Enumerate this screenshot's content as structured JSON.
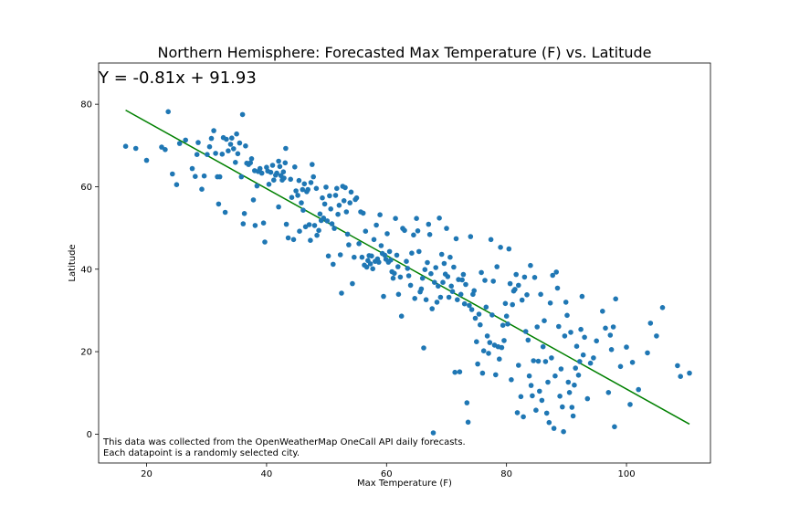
{
  "chart_data": {
    "type": "scatter",
    "title": "Northern Hemisphere: Forecasted Max Temperature (F) vs. Latitude",
    "xlabel": "Max Temperature (F)",
    "ylabel": "Latitude",
    "xlim": [
      12,
      114
    ],
    "ylim": [
      -7,
      90
    ],
    "xticks": [
      20,
      40,
      60,
      80,
      100
    ],
    "yticks": [
      0,
      20,
      40,
      60,
      80
    ],
    "grid": false,
    "equation": "Y = -0.81x + 91.93",
    "regression": {
      "slope": -0.81,
      "intercept": 91.93,
      "x_start": 16.5,
      "x_end": 110.5,
      "color": "#008000"
    },
    "point_color": "#1f77b4",
    "annotation_lines": [
      "This data was collected from the OpenWeatherMap OneCall API daily forecasts.",
      "Each datapoint is a randomly selected city."
    ],
    "points": [
      [
        16.5,
        69.8
      ],
      [
        18.2,
        69.3
      ],
      [
        20,
        66.4
      ],
      [
        22.5,
        69.6
      ],
      [
        23.1,
        69
      ],
      [
        23.6,
        78.2
      ],
      [
        24.3,
        63.1
      ],
      [
        25,
        60.5
      ],
      [
        25.5,
        70.5
      ],
      [
        26.5,
        71.3
      ],
      [
        27.6,
        64.4
      ],
      [
        28.1,
        62.5
      ],
      [
        28.4,
        67.8
      ],
      [
        28.6,
        70.7
      ],
      [
        29.2,
        59.4
      ],
      [
        29.6,
        62.6
      ],
      [
        30.1,
        67.8
      ],
      [
        30.5,
        69.7
      ],
      [
        30.8,
        71.7
      ],
      [
        31.2,
        73.6
      ],
      [
        31.5,
        68.1
      ],
      [
        31.8,
        62.4
      ],
      [
        32,
        55.8
      ],
      [
        32.2,
        62.4
      ],
      [
        32.6,
        67.9
      ],
      [
        32.8,
        71.9
      ],
      [
        33.1,
        53.8
      ],
      [
        33.3,
        71.5
      ],
      [
        33.6,
        68.7
      ],
      [
        34,
        70.3
      ],
      [
        34.2,
        71.8
      ],
      [
        34.5,
        69.2
      ],
      [
        34.8,
        65.9
      ],
      [
        35,
        72.8
      ],
      [
        35.2,
        68
      ],
      [
        35.5,
        70.6
      ],
      [
        35.8,
        62.4
      ],
      [
        36,
        77.5
      ],
      [
        36.1,
        51
      ],
      [
        36.3,
        53.5
      ],
      [
        36.5,
        69.9
      ],
      [
        36.7,
        65.7
      ],
      [
        37,
        65.4
      ],
      [
        37.3,
        65.8
      ],
      [
        37.5,
        66.8
      ],
      [
        37.8,
        56.8
      ],
      [
        38,
        63.9
      ],
      [
        38.1,
        50.6
      ],
      [
        38.4,
        60.2
      ],
      [
        38.6,
        63.7
      ],
      [
        38.9,
        64.4
      ],
      [
        39.2,
        63.3
      ],
      [
        39.5,
        51.2
      ],
      [
        39.7,
        46.6
      ],
      [
        40,
        64.7
      ],
      [
        40.2,
        63.8
      ],
      [
        40.4,
        60.6
      ],
      [
        40.7,
        63.5
      ],
      [
        41,
        65.2
      ],
      [
        41.2,
        61.6
      ],
      [
        41.5,
        62.8
      ],
      [
        41.7,
        63.3
      ],
      [
        42,
        55.1
      ],
      [
        42,
        66.2
      ],
      [
        42.2,
        64.9
      ],
      [
        42.4,
        62.7
      ],
      [
        42.6,
        61.6
      ],
      [
        42.8,
        63.6
      ],
      [
        42.9,
        62.1
      ],
      [
        43.1,
        65.8
      ],
      [
        43.2,
        69.3
      ],
      [
        43.3,
        50.9
      ],
      [
        43.6,
        47.6
      ],
      [
        44,
        61.8
      ],
      [
        44.2,
        57.4
      ],
      [
        44.5,
        47.2
      ],
      [
        44.7,
        64.8
      ],
      [
        44.9,
        59
      ],
      [
        45.2,
        57.9
      ],
      [
        45.4,
        61.5
      ],
      [
        45.5,
        49.2
      ],
      [
        45.8,
        56.1
      ],
      [
        46,
        59.3
      ],
      [
        46.1,
        54.3
      ],
      [
        46.3,
        60.7
      ],
      [
        46.5,
        50.3
      ],
      [
        46.7,
        58.8
      ],
      [
        46.9,
        59.3
      ],
      [
        47.1,
        50.8
      ],
      [
        47.3,
        47
      ],
      [
        47.4,
        61
      ],
      [
        47.6,
        65.4
      ],
      [
        47.8,
        62.4
      ],
      [
        48,
        50.6
      ],
      [
        48.3,
        59.6
      ],
      [
        48.4,
        48.2
      ],
      [
        48.7,
        49.4
      ],
      [
        48.9,
        53.4
      ],
      [
        49.1,
        51.8
      ],
      [
        49.3,
        57.3
      ],
      [
        49.5,
        52.4
      ],
      [
        49.7,
        55.8
      ],
      [
        49.9,
        59.9
      ],
      [
        50.1,
        51.7
      ],
      [
        50.3,
        43.2
      ],
      [
        50.5,
        57.8
      ],
      [
        50.7,
        54.6
      ],
      [
        50.9,
        51
      ],
      [
        51.1,
        41.2
      ],
      [
        51.3,
        49.9
      ],
      [
        51.5,
        57.9
      ],
      [
        51.7,
        59.6
      ],
      [
        51.9,
        53.3
      ],
      [
        52.1,
        55.5
      ],
      [
        52.3,
        43.5
      ],
      [
        52.5,
        34.2
      ],
      [
        52.7,
        60.1
      ],
      [
        52.9,
        56.6
      ],
      [
        53.1,
        59.8
      ],
      [
        53.3,
        53.9
      ],
      [
        53.5,
        48.5
      ],
      [
        53.7,
        45.9
      ],
      [
        53.9,
        56.1
      ],
      [
        54.1,
        58.7
      ],
      [
        54.3,
        36.5
      ],
      [
        54.6,
        42.9
      ],
      [
        54.8,
        56.9
      ],
      [
        55,
        57.3
      ],
      [
        55.4,
        46.2
      ],
      [
        55.7,
        53.9
      ],
      [
        55.9,
        42.9
      ],
      [
        56.1,
        53.6
      ],
      [
        56.3,
        41
      ],
      [
        56.5,
        49.2
      ],
      [
        56.7,
        40.5
      ],
      [
        56.9,
        42.1
      ],
      [
        57.1,
        43.3
      ],
      [
        57.3,
        41.3
      ],
      [
        57.5,
        43.2
      ],
      [
        57.7,
        40.1
      ],
      [
        57.9,
        47.2
      ],
      [
        58.1,
        41.9
      ],
      [
        58.3,
        50.7
      ],
      [
        58.5,
        42.5
      ],
      [
        58.7,
        41.7
      ],
      [
        58.9,
        53.2
      ],
      [
        59.1,
        45.7
      ],
      [
        59.3,
        43.8
      ],
      [
        59.5,
        33.4
      ],
      [
        59.7,
        43.4
      ],
      [
        59.9,
        42.4
      ],
      [
        60.1,
        48.6
      ],
      [
        60.3,
        41.7
      ],
      [
        60.5,
        44.3
      ],
      [
        60.7,
        42.2
      ],
      [
        60.9,
        39.4
      ],
      [
        61.1,
        37.8
      ],
      [
        61.3,
        39
      ],
      [
        61.5,
        52.3
      ],
      [
        61.7,
        43.4
      ],
      [
        61.9,
        40.6
      ],
      [
        62,
        33.9
      ],
      [
        62.3,
        38.1
      ],
      [
        62.5,
        28.6
      ],
      [
        62.7,
        49.9
      ],
      [
        63,
        49.4
      ],
      [
        63.3,
        41.9
      ],
      [
        63.5,
        40.2
      ],
      [
        63.7,
        38.4
      ],
      [
        64,
        36.1
      ],
      [
        64.2,
        43.9
      ],
      [
        64.5,
        48.3
      ],
      [
        64.7,
        32.9
      ],
      [
        65,
        52.3
      ],
      [
        65.2,
        49.3
      ],
      [
        65.4,
        44.3
      ],
      [
        65.6,
        34.5
      ],
      [
        65.8,
        35.2
      ],
      [
        66,
        37.8
      ],
      [
        66.2,
        20.9
      ],
      [
        66.4,
        39.9
      ],
      [
        66.6,
        32.6
      ],
      [
        66.8,
        41.6
      ],
      [
        67,
        50.9
      ],
      [
        67.2,
        48.4
      ],
      [
        67.4,
        38.9
      ],
      [
        67.6,
        30.4
      ],
      [
        67.8,
        0.3
      ],
      [
        68,
        36.8
      ],
      [
        68.2,
        40.4
      ],
      [
        68.4,
        32
      ],
      [
        68.6,
        35.9
      ],
      [
        68.8,
        52.4
      ],
      [
        69,
        33.2
      ],
      [
        69.2,
        43.6
      ],
      [
        69.4,
        36.8
      ],
      [
        69.6,
        41.4
      ],
      [
        69.8,
        38.8
      ],
      [
        70,
        49.9
      ],
      [
        70.2,
        38.2
      ],
      [
        70.4,
        33.2
      ],
      [
        70.6,
        42.9
      ],
      [
        70.8,
        35.9
      ],
      [
        71,
        34.6
      ],
      [
        71.2,
        40.5
      ],
      [
        71.4,
        15
      ],
      [
        71.6,
        47.4
      ],
      [
        71.8,
        32.6
      ],
      [
        72,
        37.5
      ],
      [
        72.2,
        15.1
      ],
      [
        72.4,
        33.9
      ],
      [
        72.6,
        37.4
      ],
      [
        72.8,
        38.7
      ],
      [
        73,
        31.6
      ],
      [
        73.2,
        36.3
      ],
      [
        73.4,
        7.6
      ],
      [
        73.6,
        2.9
      ],
      [
        73.8,
        31.2
      ],
      [
        74,
        47.9
      ],
      [
        74.2,
        30.2
      ],
      [
        74.4,
        33.9
      ],
      [
        74.6,
        34.8
      ],
      [
        74.8,
        28.1
      ],
      [
        75,
        22.4
      ],
      [
        75.2,
        17
      ],
      [
        75.4,
        29.1
      ],
      [
        75.6,
        26.5
      ],
      [
        75.8,
        39.2
      ],
      [
        76,
        14.8
      ],
      [
        76.2,
        20.2
      ],
      [
        76.4,
        37.3
      ],
      [
        76.6,
        30.8
      ],
      [
        76.8,
        23.8
      ],
      [
        77,
        19.6
      ],
      [
        77.2,
        22.2
      ],
      [
        77.4,
        47.2
      ],
      [
        77.6,
        28.9
      ],
      [
        77.8,
        37.1
      ],
      [
        78,
        21.6
      ],
      [
        78.2,
        14.4
      ],
      [
        78.4,
        40.6
      ],
      [
        78.6,
        21.2
      ],
      [
        78.8,
        18.2
      ],
      [
        79,
        45.3
      ],
      [
        79.2,
        21
      ],
      [
        79.4,
        26.4
      ],
      [
        79.6,
        22.7
      ],
      [
        79.8,
        31.7
      ],
      [
        80,
        28.6
      ],
      [
        80.2,
        26.7
      ],
      [
        80.4,
        44.9
      ],
      [
        80.6,
        36.5
      ],
      [
        80.8,
        13.2
      ],
      [
        81,
        31.4
      ],
      [
        81.2,
        34.7
      ],
      [
        81.4,
        35.1
      ],
      [
        81.6,
        38.7
      ],
      [
        81.8,
        5.2
      ],
      [
        82,
        16.7
      ],
      [
        82,
        36.1
      ],
      [
        82.4,
        9.1
      ],
      [
        82.6,
        32.5
      ],
      [
        82.8,
        4.2
      ],
      [
        83,
        38.1
      ],
      [
        83.2,
        24.9
      ],
      [
        83.4,
        33.8
      ],
      [
        83.6,
        22.8
      ],
      [
        83.8,
        14.1
      ],
      [
        84,
        40.9
      ],
      [
        84.1,
        11.8
      ],
      [
        84.3,
        9.3
      ],
      [
        84.5,
        17.8
      ],
      [
        84.7,
        38
      ],
      [
        84.9,
        5.8
      ],
      [
        85.1,
        26
      ],
      [
        85.3,
        17.7
      ],
      [
        85.5,
        10.4
      ],
      [
        85.7,
        33.9
      ],
      [
        85.9,
        8.2
      ],
      [
        86.1,
        21.2
      ],
      [
        86.3,
        27.5
      ],
      [
        86.5,
        17.6
      ],
      [
        86.7,
        5.1
      ],
      [
        86.9,
        12.6
      ],
      [
        87.1,
        2.8
      ],
      [
        87.3,
        31.8
      ],
      [
        87.5,
        18.5
      ],
      [
        87.7,
        38.5
      ],
      [
        87.9,
        1.4
      ],
      [
        88.1,
        14.1
      ],
      [
        88.3,
        39.3
      ],
      [
        88.5,
        35.4
      ],
      [
        88.7,
        26.1
      ],
      [
        88.9,
        9.2
      ],
      [
        89.1,
        15.8
      ],
      [
        89.3,
        6.6
      ],
      [
        89.5,
        0.6
      ],
      [
        89.7,
        23.8
      ],
      [
        89.9,
        32
      ],
      [
        90.1,
        28.8
      ],
      [
        90.3,
        12.6
      ],
      [
        90.5,
        10.1
      ],
      [
        90.7,
        24.7
      ],
      [
        90.9,
        6.5
      ],
      [
        91.1,
        4.4
      ],
      [
        91.3,
        11.9
      ],
      [
        91.5,
        16
      ],
      [
        91.7,
        21.3
      ],
      [
        92,
        14.3
      ],
      [
        92.2,
        17.6
      ],
      [
        92.4,
        25.4
      ],
      [
        92.6,
        33.4
      ],
      [
        92.8,
        19.2
      ],
      [
        93,
        23.5
      ],
      [
        93.5,
        8.6
      ],
      [
        94,
        17.2
      ],
      [
        94.5,
        18.5
      ],
      [
        95,
        22.6
      ],
      [
        96,
        29.8
      ],
      [
        96.5,
        25.7
      ],
      [
        97,
        10.1
      ],
      [
        97.3,
        24
      ],
      [
        97.5,
        20.5
      ],
      [
        97.8,
        26
      ],
      [
        98,
        1.8
      ],
      [
        98.2,
        32.8
      ],
      [
        99,
        16.4
      ],
      [
        100,
        21.1
      ],
      [
        100.6,
        7.2
      ],
      [
        101,
        17.4
      ],
      [
        102,
        10.8
      ],
      [
        103.5,
        19.7
      ],
      [
        104,
        26.9
      ],
      [
        105,
        23.8
      ],
      [
        106,
        30.7
      ],
      [
        108.5,
        16.6
      ],
      [
        109,
        14
      ],
      [
        110.5,
        14.8
      ]
    ]
  }
}
